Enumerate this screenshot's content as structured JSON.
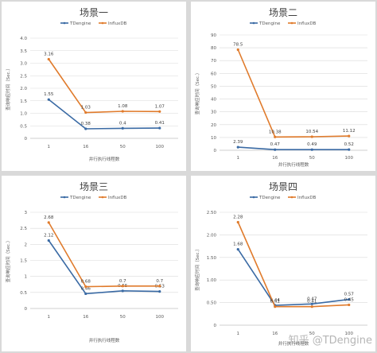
{
  "watermark": "知乎 @TDengine",
  "colors": {
    "tdengine": "#3a6aa4",
    "influxdb": "#e07b2c"
  },
  "chart_data": [
    {
      "type": "line",
      "title": "场景一",
      "categories": [
        "1",
        "16",
        "50",
        "100"
      ],
      "xlabel": "并行执行线程数",
      "ylabel": "查询响应时间（Sec.）",
      "ylim": [
        0,
        4
      ],
      "yticks": [
        "0",
        "0.5",
        "1.0",
        "1.5",
        "2.0",
        "2.5",
        "3.0",
        "3.5",
        "4.0"
      ],
      "series": [
        {
          "name": "TDengine",
          "values": [
            1.55,
            0.38,
            0.4,
            0.41
          ],
          "labels": [
            "1.55",
            "0.38",
            "0.4",
            "0.41"
          ]
        },
        {
          "name": "InfluxDB",
          "values": [
            3.16,
            1.03,
            1.08,
            1.07
          ],
          "labels": [
            "3.16",
            "1.03",
            "1.08",
            "1.07"
          ]
        }
      ]
    },
    {
      "type": "line",
      "title": "场景二",
      "categories": [
        "1",
        "16",
        "50",
        "100"
      ],
      "xlabel": "并行执行线程数",
      "ylabel": "查询响应时间（Sec.）",
      "ylim": [
        0,
        90
      ],
      "yticks": [
        "0",
        "10",
        "20",
        "30",
        "40",
        "50",
        "60",
        "70",
        "80",
        "90"
      ],
      "series": [
        {
          "name": "TDengine",
          "values": [
            2.39,
            0.47,
            0.49,
            0.52
          ],
          "labels": [
            "2.39",
            "0.47",
            "0.49",
            "0.52"
          ]
        },
        {
          "name": "InfluxDB",
          "values": [
            78.5,
            10.38,
            10.54,
            11.12
          ],
          "labels": [
            "78.5",
            "10.38",
            "10.54",
            "11.12"
          ]
        }
      ]
    },
    {
      "type": "line",
      "title": "场景三",
      "categories": [
        "1",
        "16",
        "50",
        "100"
      ],
      "xlabel": "并行执行线程数",
      "ylabel": "查询响应时间（Sec.）",
      "ylim": [
        0,
        3
      ],
      "yticks": [
        "0",
        "0.5",
        "1",
        "1.5",
        "2",
        "2.5",
        "3"
      ],
      "series": [
        {
          "name": "TDengine",
          "values": [
            2.12,
            0.46,
            0.55,
            0.53
          ],
          "labels": [
            "2.12",
            "0.46",
            "0.55",
            "0.53"
          ]
        },
        {
          "name": "InfluxDB",
          "values": [
            2.68,
            0.68,
            0.7,
            0.7
          ],
          "labels": [
            "2.68",
            "0.68",
            "0.7",
            "0.7"
          ]
        }
      ]
    },
    {
      "type": "line",
      "title": "场景四",
      "categories": [
        "1",
        "16",
        "50",
        "100"
      ],
      "xlabel": "并行执行线程数",
      "ylabel": "查询响应时间（Sec.）",
      "ylim": [
        0,
        2.5
      ],
      "yticks": [
        "0",
        "0.50",
        "1.00",
        "1.50",
        "2.00",
        "2.50"
      ],
      "series": [
        {
          "name": "TDengine",
          "values": [
            1.68,
            0.44,
            0.47,
            0.57
          ],
          "labels": [
            "1.68",
            "0.44",
            "0.47",
            "0.57"
          ]
        },
        {
          "name": "InfluxDB",
          "values": [
            2.28,
            0.41,
            0.41,
            0.45
          ],
          "labels": [
            "2.28",
            "0.41",
            "0.41",
            "0.45"
          ]
        }
      ]
    }
  ]
}
